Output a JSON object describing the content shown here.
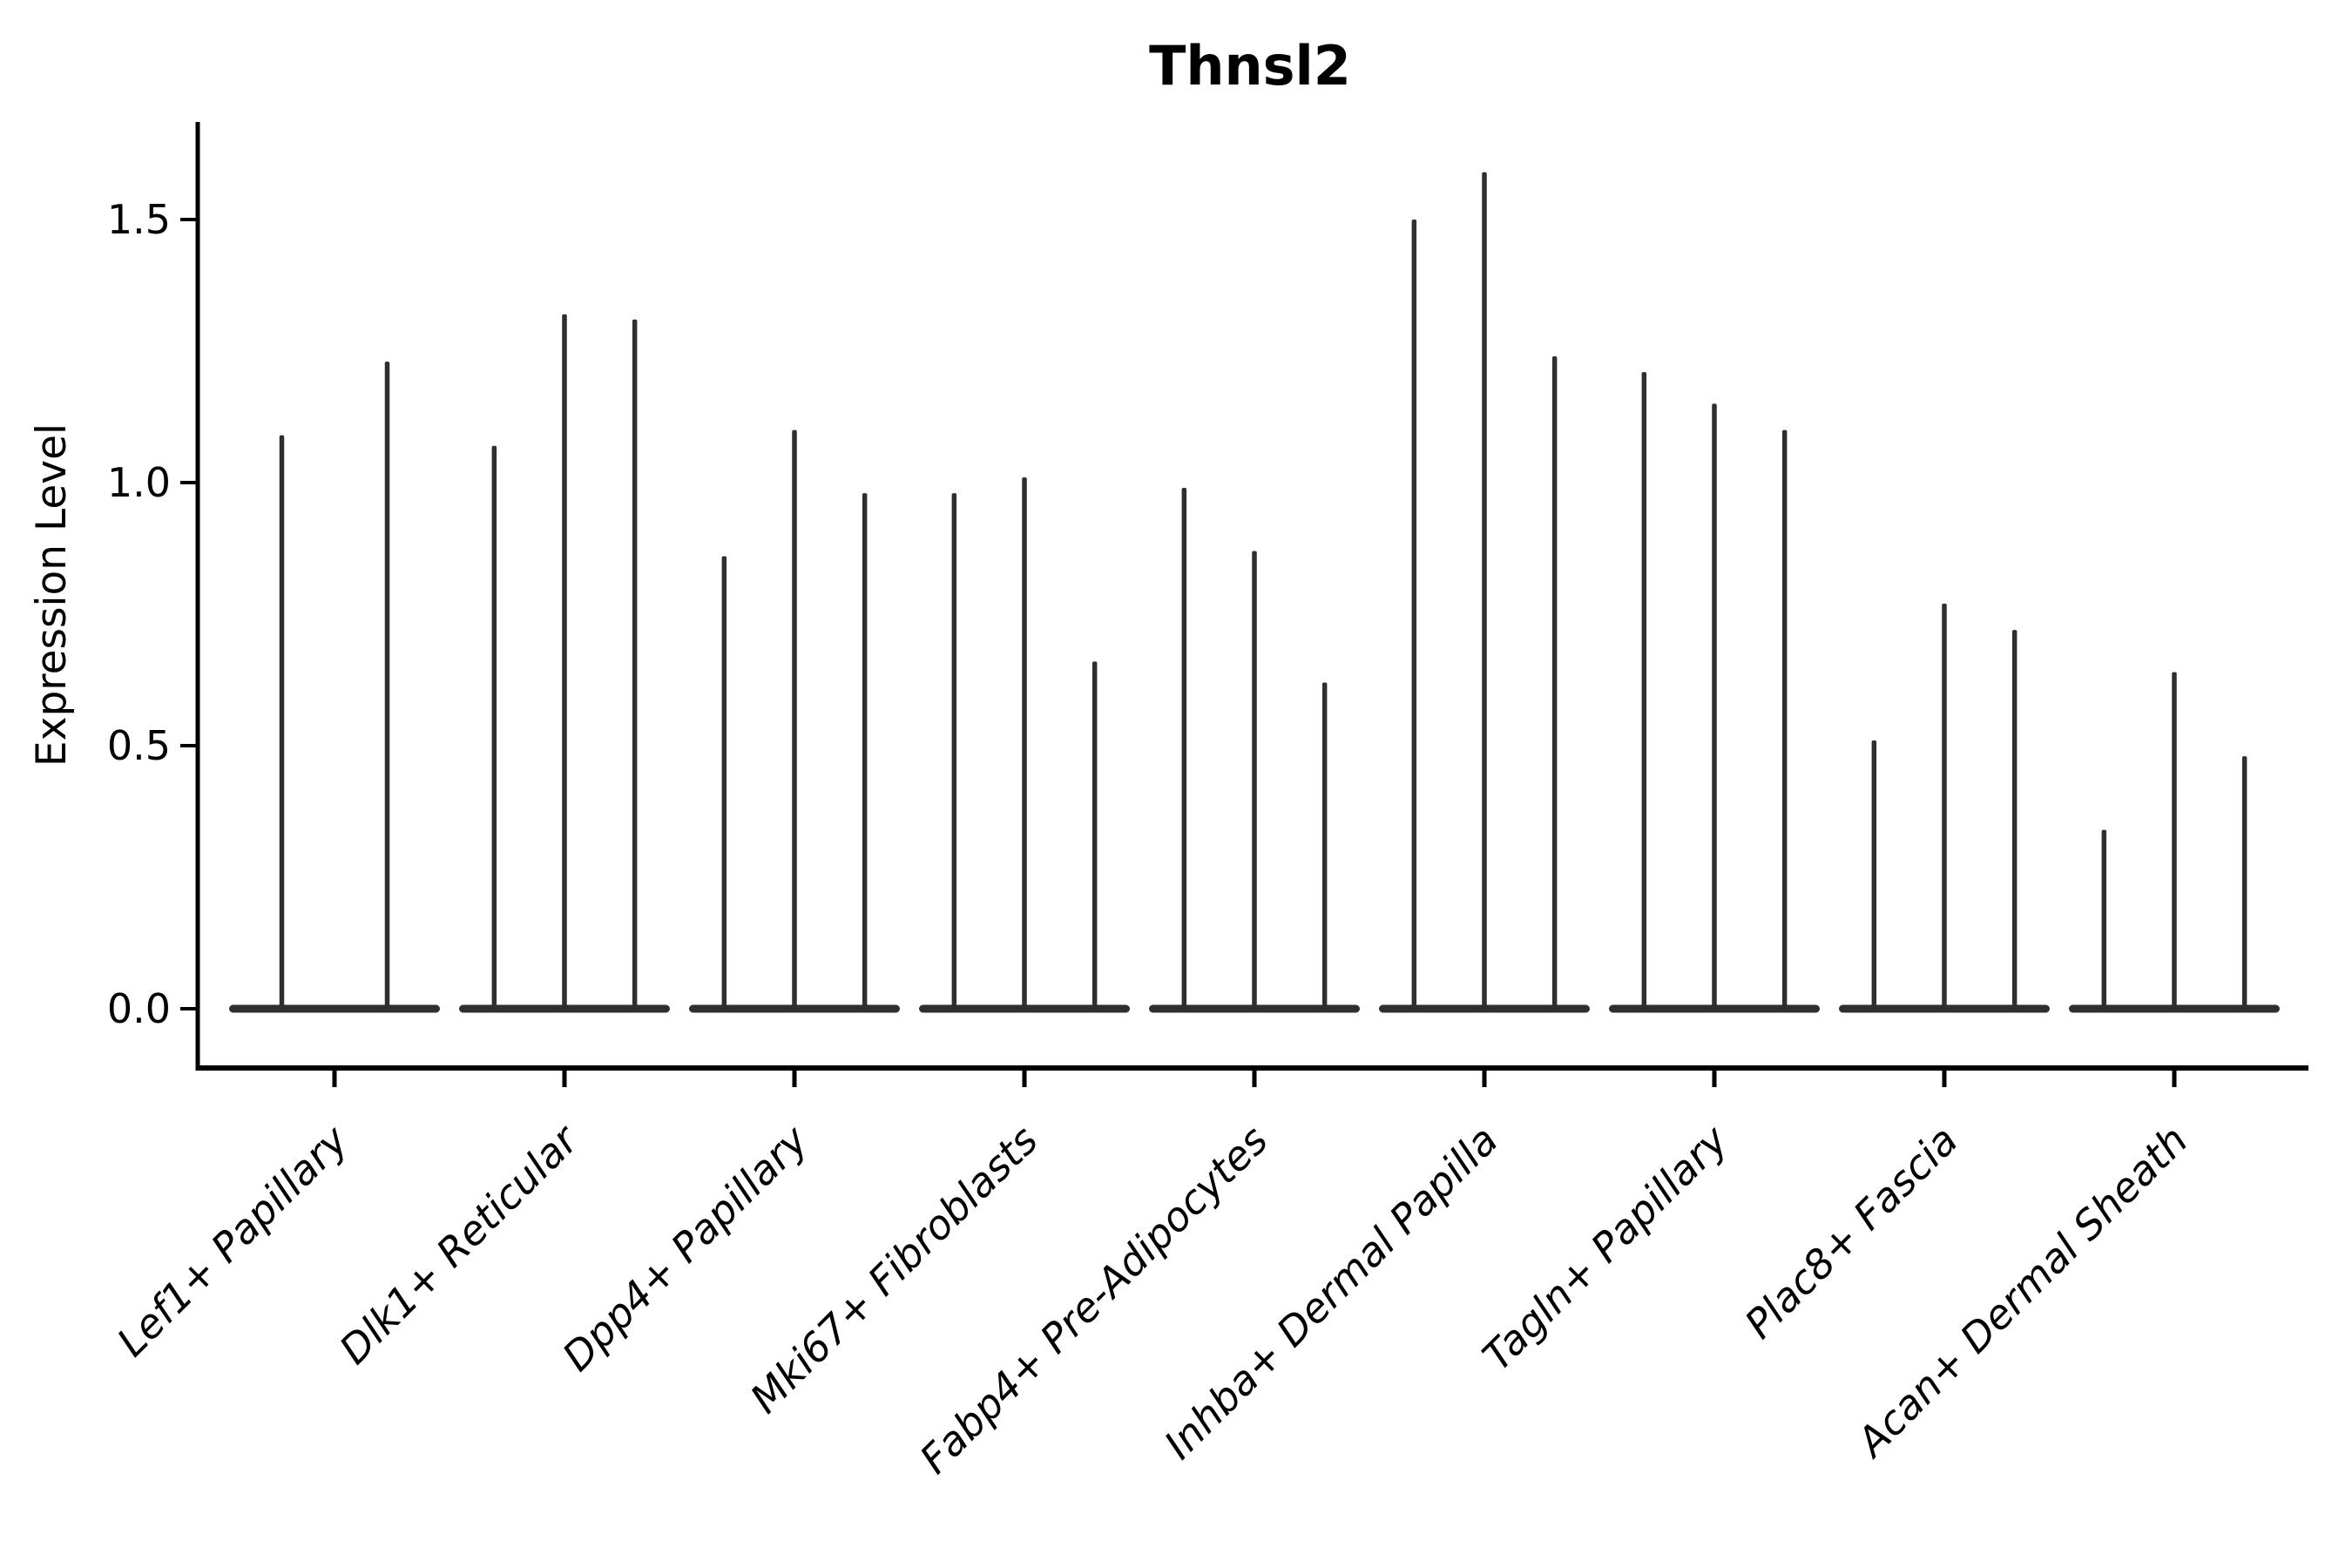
{
  "figure": {
    "background": "#ffffff"
  },
  "chart_data": {
    "type": "violin",
    "title": "Thnsl2",
    "xlabel": "",
    "ylabel": "Expression Level",
    "ylim": [
      0,
      1.69
    ],
    "yticks": [
      0.0,
      0.5,
      1.0,
      1.5
    ],
    "ytick_labels": [
      "0.0",
      "0.5",
      "1.0",
      "1.5"
    ],
    "grid": false,
    "legend": "none",
    "axis_color": "#000000",
    "violin_color": "#2f2f2f",
    "style_note": "zero-inflated single-cell expression violins: flat body at 0 with a thin spike up to the max expression value; one violin per sample within each category",
    "categories": [
      "Lef1+ Papillary",
      "Dlk1+ Reticular",
      "Dpp4+ Papillary",
      "Mki67+ Fibroblasts",
      "Fabp4+ Pre-Adipocytes",
      "Inhba+ Dermal Papilla",
      "Tagln+ Papillary",
      "Plac8+ Fascia",
      "Acan+ Dermal Sheath"
    ],
    "groups": [
      {
        "label": "Lef1+ Papillary",
        "violin_maxima": [
          1.09,
          1.23
        ]
      },
      {
        "label": "Dlk1+ Reticular",
        "violin_maxima": [
          1.07,
          1.32,
          1.31
        ]
      },
      {
        "label": "Dpp4+ Papillary",
        "violin_maxima": [
          0.86,
          1.1,
          0.98
        ]
      },
      {
        "label": "Mki67+ Fibroblasts",
        "violin_maxima": [
          0.98,
          1.01,
          0.66
        ]
      },
      {
        "label": "Fabp4+ Pre-Adipocytes",
        "violin_maxima": [
          0.99,
          0.87,
          0.62
        ]
      },
      {
        "label": "Inhba+ Dermal Papilla",
        "violin_maxima": [
          1.5,
          1.59,
          1.24
        ]
      },
      {
        "label": "Tagln+ Papillary",
        "violin_maxima": [
          1.21,
          1.15,
          1.1
        ]
      },
      {
        "label": "Plac8+ Fascia",
        "violin_maxima": [
          0.51,
          0.77,
          0.72
        ]
      },
      {
        "label": "Acan+ Dermal Sheath",
        "violin_maxima": [
          0.34,
          0.64,
          0.48
        ]
      }
    ]
  }
}
